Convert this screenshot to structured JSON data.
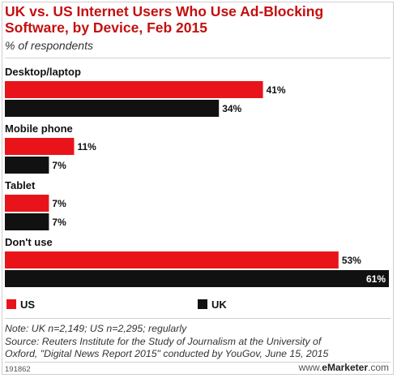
{
  "header": {
    "title": "UK vs. US Internet Users Who Use Ad-Blocking Software, by Device, Feb 2015",
    "subtitle": "% of respondents"
  },
  "colors": {
    "us": "#e8141a",
    "uk": "#111111",
    "title": "#c40f0f"
  },
  "chart_data": {
    "type": "bar",
    "orientation": "horizontal",
    "categories": [
      "Desktop/laptop",
      "Mobile phone",
      "Tablet",
      "Don't use"
    ],
    "series": [
      {
        "name": "US",
        "values": [
          41,
          11,
          7,
          53
        ],
        "labels": [
          "41%",
          "11%",
          "7%",
          "53%"
        ],
        "color": "#e8141a"
      },
      {
        "name": "UK",
        "values": [
          34,
          7,
          7,
          61
        ],
        "labels": [
          "34%",
          "7%",
          "7%",
          "61%"
        ],
        "color": "#111111"
      }
    ],
    "grid": false,
    "legend_position": "bottom"
  },
  "legend": {
    "us_label": "US",
    "uk_label": "UK"
  },
  "note": {
    "line1": "Note: UK n=2,149; US n=2,295; regularly",
    "line2": "Source: Reuters Institute for the Study of Journalism at the University of",
    "line3": "Oxford, \"Digital News Report 2015\" conducted by YouGov, June 15, 2015"
  },
  "footer": {
    "chart_id": "191862",
    "brand_prefix": "www.",
    "brand_name": "eMarketer",
    "brand_suffix": ".com"
  }
}
